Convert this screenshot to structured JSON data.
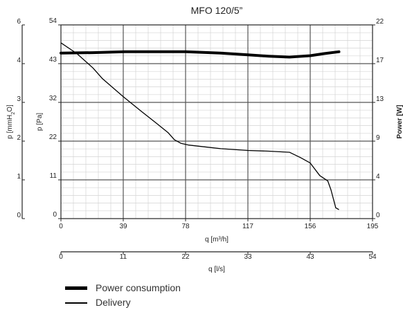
{
  "chart_data": {
    "type": "line",
    "title": "MFO 120/5”",
    "x_primary": {
      "label": "q [m³/h]",
      "ticks": [
        0,
        39,
        78,
        117,
        156,
        195
      ],
      "range": [
        0,
        195
      ]
    },
    "x_secondary": {
      "label": "q [l/s]",
      "ticks": [
        0,
        11,
        22,
        33,
        43,
        54
      ],
      "range": [
        0,
        54
      ]
    },
    "y_pa": {
      "label": "p [Pa]",
      "ticks": [
        0,
        11,
        22,
        32,
        43,
        54
      ],
      "range": [
        0,
        54
      ]
    },
    "y_mmh2o": {
      "label_main": "p [mmH",
      "label_sub": "2",
      "label_end": "O]",
      "ticks": [
        0,
        1,
        2,
        3,
        4,
        6
      ],
      "range": [
        0,
        5.5
      ]
    },
    "y_power": {
      "label": "Power [W]",
      "ticks": [
        0,
        4,
        9,
        13,
        17,
        22
      ],
      "range": [
        0,
        22
      ]
    },
    "grid": true,
    "series": [
      {
        "name": "Delivery",
        "axis": "y_pa",
        "x": [
          0,
          10,
          20,
          26,
          39,
          50,
          60,
          67,
          71,
          75,
          80,
          90,
          100,
          117,
          130,
          143,
          150,
          156,
          162,
          167,
          169,
          172,
          174
        ],
        "y": [
          49,
          46,
          42,
          39,
          34,
          30,
          26.5,
          24,
          22,
          21,
          20.5,
          20,
          19.5,
          19,
          18.8,
          18.5,
          17,
          15.5,
          12,
          10.5,
          8,
          3,
          2.5
        ]
      },
      {
        "name": "Power consumption",
        "axis": "y_power",
        "x": [
          0,
          20,
          40,
          60,
          78,
          100,
          117,
          130,
          143,
          156,
          165,
          174
        ],
        "y": [
          18.8,
          18.85,
          18.95,
          18.95,
          18.95,
          18.8,
          18.6,
          18.45,
          18.35,
          18.5,
          18.75,
          18.95
        ]
      }
    ],
    "legend": {
      "position": "bottom-left",
      "entries": [
        "Power consumption",
        "Delivery"
      ]
    }
  }
}
